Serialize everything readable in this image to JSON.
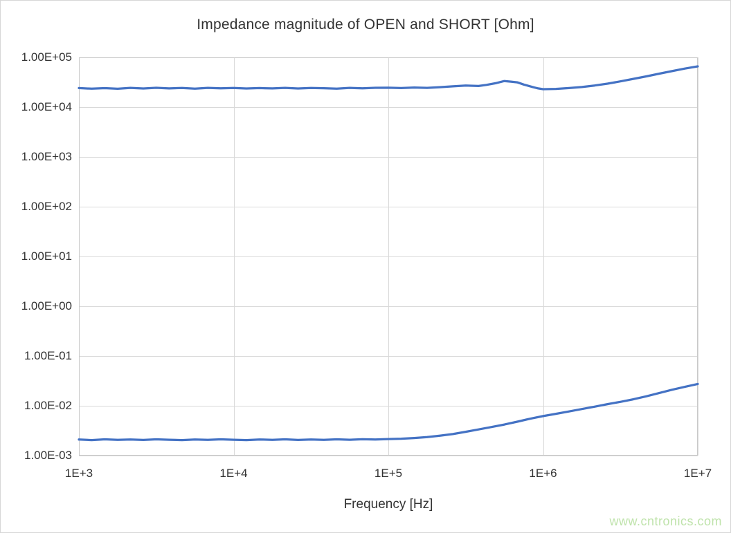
{
  "chart": {
    "title": "Impedance magnitude of OPEN and SHORT [Ohm]",
    "x_axis_title": "Frequency [Hz]"
  },
  "watermark": {
    "text": "www.cntronics.com",
    "color": "#bfe3ab"
  },
  "chart_data": {
    "type": "line",
    "title": "Impedance magnitude of OPEN and SHORT [Ohm]",
    "xlabel": "Frequency [Hz]",
    "ylabel": "",
    "x_scale": "log",
    "y_scale": "log",
    "xlim": [
      1000,
      10000000
    ],
    "ylim": [
      0.001,
      100000
    ],
    "grid": true,
    "legend": "none",
    "gridline_color": "#d9d9d9",
    "border_color": "#c9c9c9",
    "series_color": "#4472C4",
    "x_tick_labels": [
      "1E+3",
      "1E+4",
      "1E+5",
      "1E+6",
      "1E+7"
    ],
    "x_tick_values": [
      1000,
      10000,
      100000,
      1000000,
      10000000
    ],
    "y_tick_labels": [
      "1.00E+05",
      "1.00E+04",
      "1.00E+03",
      "1.00E+02",
      "1.00E+01",
      "1.00E+00",
      "1.00E-01",
      "1.00E-02",
      "1.00E-03"
    ],
    "y_tick_values": [
      100000,
      10000,
      1000,
      100,
      10,
      1,
      0.1,
      0.01,
      0.001
    ],
    "series": [
      {
        "name": "OPEN",
        "points": [
          [
            1000.0,
            24200.0
          ],
          [
            1210.0,
            23500.0
          ],
          [
            1470.0,
            24100.0
          ],
          [
            1780.0,
            23400.0
          ],
          [
            2150.0,
            24400.0
          ],
          [
            2610.0,
            23700.0
          ],
          [
            3160.0,
            24500.0
          ],
          [
            3830.0,
            23800.0
          ],
          [
            4640.0,
            24300.0
          ],
          [
            5620.0,
            23600.0
          ],
          [
            6810.0,
            24400.0
          ],
          [
            8250.0,
            23900.0
          ],
          [
            10000.0,
            24300.0
          ],
          [
            12100.0,
            23700.0
          ],
          [
            14700.0,
            24200.0
          ],
          [
            17800.0,
            23800.0
          ],
          [
            21500.0,
            24400.0
          ],
          [
            26100.0,
            23700.0
          ],
          [
            31600.0,
            24300.0
          ],
          [
            38300.0,
            24000.0
          ],
          [
            46400.0,
            23600.0
          ],
          [
            56200.0,
            24400.0
          ],
          [
            68100.0,
            23900.0
          ],
          [
            82500.0,
            24500.0
          ],
          [
            100000.0,
            24600.0
          ],
          [
            121000.0,
            24200.0
          ],
          [
            147000.0,
            24800.0
          ],
          [
            178000.0,
            24400.0
          ],
          [
            215000.0,
            25200.0
          ],
          [
            261000.0,
            26200.0
          ],
          [
            316000.0,
            27200.0
          ],
          [
            383000.0,
            26600.0
          ],
          [
            430000.0,
            28000.0
          ],
          [
            500000.0,
            30500.0
          ],
          [
            562000.0,
            33500.0
          ],
          [
            620000.0,
            32500.0
          ],
          [
            681000.0,
            31500.0
          ],
          [
            750000.0,
            28500.0
          ],
          [
            870000.0,
            25000.0
          ],
          [
            930000.0,
            23800.0
          ],
          [
            1000000.0,
            23000.0
          ],
          [
            1210000.0,
            23300.0
          ],
          [
            1470000.0,
            24200.0
          ],
          [
            1780000.0,
            25400.0
          ],
          [
            2150000.0,
            27200.0
          ],
          [
            2610000.0,
            29700.0
          ],
          [
            3160000.0,
            33000.0
          ],
          [
            3830000.0,
            37000.0
          ],
          [
            4640000.0,
            41500.0
          ],
          [
            5620000.0,
            47000.0
          ],
          [
            6810000.0,
            53000.0
          ],
          [
            8250000.0,
            59500.0
          ],
          [
            10000000.0,
            66000.0
          ]
        ]
      },
      {
        "name": "SHORT",
        "points": [
          [
            1000.0,
            0.0021
          ],
          [
            1210.0,
            0.00205
          ],
          [
            1470.0,
            0.00212
          ],
          [
            1780.0,
            0.00207
          ],
          [
            2150.0,
            0.00211
          ],
          [
            2610.0,
            0.00206
          ],
          [
            3160.0,
            0.00212
          ],
          [
            3830.0,
            0.00208
          ],
          [
            4640.0,
            0.00205
          ],
          [
            5620.0,
            0.00211
          ],
          [
            6810.0,
            0.00207
          ],
          [
            8250.0,
            0.00212
          ],
          [
            10000.0,
            0.00208
          ],
          [
            12100.0,
            0.00205
          ],
          [
            14700.0,
            0.00211
          ],
          [
            17800.0,
            0.00207
          ],
          [
            21500.0,
            0.00212
          ],
          [
            26100.0,
            0.00206
          ],
          [
            31600.0,
            0.0021
          ],
          [
            38300.0,
            0.00207
          ],
          [
            46400.0,
            0.00212
          ],
          [
            56200.0,
            0.00208
          ],
          [
            68100.0,
            0.00213
          ],
          [
            82500.0,
            0.0021
          ],
          [
            100000.0,
            0.00215
          ],
          [
            121000.0,
            0.00218
          ],
          [
            147000.0,
            0.00225
          ],
          [
            178000.0,
            0.00235
          ],
          [
            215000.0,
            0.0025
          ],
          [
            261000.0,
            0.0027
          ],
          [
            316000.0,
            0.003
          ],
          [
            383000.0,
            0.00335
          ],
          [
            464000.0,
            0.00375
          ],
          [
            562000.0,
            0.0042
          ],
          [
            681000.0,
            0.0048
          ],
          [
            825000.0,
            0.0055
          ],
          [
            1000000.0,
            0.0062
          ],
          [
            1210000.0,
            0.0069
          ],
          [
            1470000.0,
            0.0077
          ],
          [
            1780000.0,
            0.0086
          ],
          [
            2150000.0,
            0.0096
          ],
          [
            2610000.0,
            0.0108
          ],
          [
            3160000.0,
            0.012
          ],
          [
            3830000.0,
            0.0135
          ],
          [
            4640000.0,
            0.0155
          ],
          [
            5620000.0,
            0.018
          ],
          [
            6810000.0,
            0.021
          ],
          [
            8250000.0,
            0.024
          ],
          [
            10000000.0,
            0.0275
          ]
        ]
      }
    ]
  }
}
